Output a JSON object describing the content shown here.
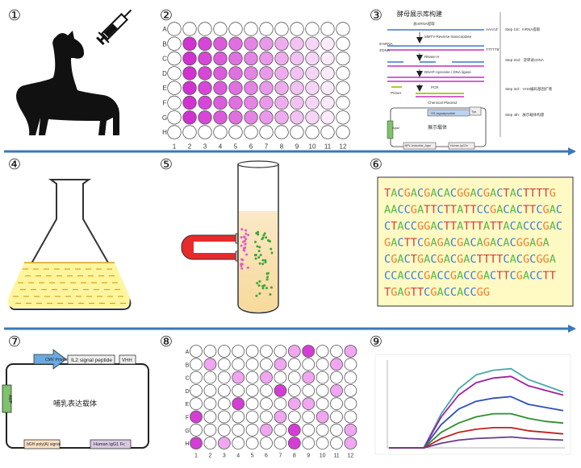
{
  "steps": [
    "①",
    "②",
    "③",
    "④",
    "⑤",
    "⑥",
    "⑦",
    "⑧",
    "⑨"
  ],
  "plate_rows": [
    "A",
    "B",
    "C",
    "D",
    "E",
    "F",
    "G",
    "H"
  ],
  "plate_cols": [
    "1",
    "2",
    "3",
    "4",
    "5",
    "6",
    "7",
    "8",
    "9",
    "10",
    "11",
    "12"
  ],
  "panel3": {
    "title": "酵母展示库构建",
    "step1": "Step 1st：mRNA提取",
    "step2": "Step 2nd：逆转录cDNA",
    "step3": "Step 3rd：VHH编码基因扩增",
    "step4": "Step 4th：展示载体构建",
    "l_mrna": "总mRNA提取",
    "l_rt": "MMTV-Reverse transcriptase",
    "l_rnase": "RNase H",
    "l_dnapol": "DNAP-Aprosine / DNA ligase",
    "l_pcr": "PCR",
    "l_primer": "Primer",
    "l_cloning": "Chemical Plasmid",
    "l_vector": "展示载体",
    "l_aga": "Aga2",
    "l_polya": "AAAA3'",
    "l_ttt": "TTTTT5'",
    "l_mrna5": "5'mRNA",
    "l_dna3": "3'DNA",
    "l_v1": "SS-signalpeptide",
    "l_v2": "Tys",
    "l_v3": "BPLI-inducible_AgaI",
    "l_v4": "Human IgG2c"
  },
  "dna_sequence": [
    "TACGACGACACGGACGACTACTTTTG",
    "AACCGATTCTTATTCCGACACTTCGAC",
    "CTACCGGACTTATTTATTACACCCGAC",
    "GACTTCGAGACGACAGACACGGAGA",
    "CGACTGACGACGACTTTTCACGCGGA",
    "CCACCCGACCGACCGACTTCGACCTT",
    "TGAGTTCGACCACCGG"
  ],
  "colors": {
    "A": "#55b948",
    "C": "#3b7bd1",
    "G": "#f07d2b",
    "T": "#d43c3c"
  },
  "plasmid7": {
    "cmv": "CMV Promoter",
    "il2": "IL2 signal peptide",
    "vhh": "VHH",
    "ampr": "AMP",
    "center": "哺乳表达载体",
    "bgh": "bGH poly(A) signal",
    "igg": "Human IgG1 Fc"
  },
  "chart_data": {
    "type": "line",
    "title": "",
    "xlabel": "",
    "ylabel": "",
    "x": [
      0,
      10,
      20,
      30,
      40,
      50,
      60,
      70,
      80,
      90,
      100
    ],
    "series": [
      {
        "values": [
          0,
          0,
          0,
          22,
          38,
          47,
          50,
          51,
          44,
          40,
          36
        ]
      },
      {
        "values": [
          0,
          0,
          0,
          20,
          34,
          42,
          45,
          46,
          40,
          37,
          34
        ]
      },
      {
        "values": [
          0,
          0,
          0,
          15,
          25,
          30,
          32,
          33,
          28,
          26,
          24
        ]
      },
      {
        "values": [
          0,
          0,
          0,
          10,
          16,
          20,
          22,
          22,
          19,
          17,
          16
        ]
      },
      {
        "values": [
          0,
          0,
          0,
          6,
          10,
          12,
          13,
          13,
          11,
          10,
          9
        ]
      },
      {
        "values": [
          0,
          0,
          0,
          3,
          5,
          6,
          6.5,
          7,
          6,
          5.5,
          5
        ]
      }
    ]
  }
}
